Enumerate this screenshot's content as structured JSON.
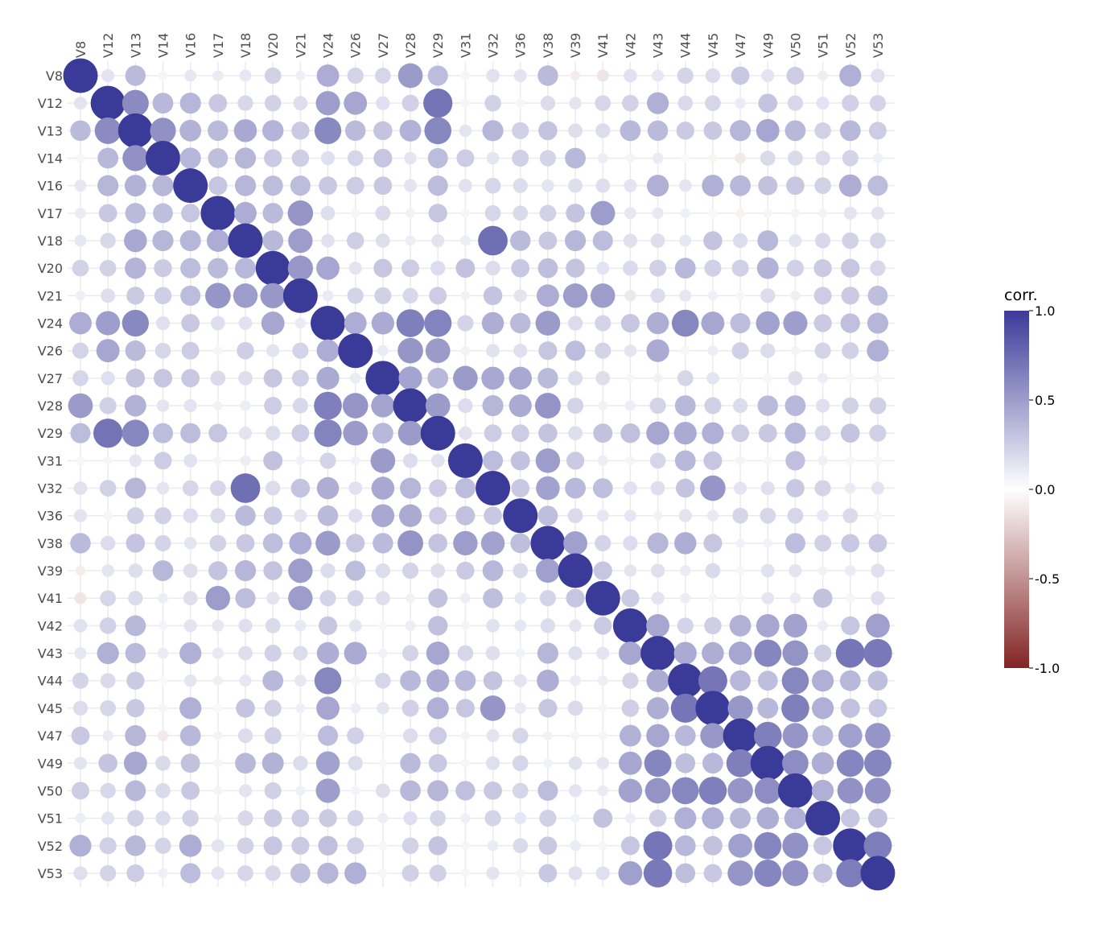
{
  "chart_data": {
    "type": "correlation-dot-matrix",
    "variables": [
      "V8",
      "V12",
      "V13",
      "V14",
      "V16",
      "V17",
      "V18",
      "V20",
      "V21",
      "V24",
      "V26",
      "V27",
      "V28",
      "V29",
      "V31",
      "V32",
      "V36",
      "V38",
      "V39",
      "V41",
      "V42",
      "V43",
      "V44",
      "V45",
      "V47",
      "V49",
      "V50",
      "V51",
      "V52",
      "V53"
    ],
    "x_axis_position": "top",
    "x_tick_rotation": -90,
    "grid": true,
    "legend": {
      "title": "corr.",
      "position": "right",
      "ticks": [
        "1.0",
        "0.5",
        "0.0",
        "-0.5",
        "-1.0"
      ],
      "range": [
        -1,
        1
      ],
      "colors": {
        "low": "#832424",
        "mid": "#ffffff",
        "high": "#3a3a98"
      }
    },
    "matrix": [
      [
        1.0,
        0.14,
        0.35,
        0.05,
        0.12,
        0.1,
        0.12,
        0.23,
        0.08,
        0.42,
        0.22,
        0.21,
        0.51,
        0.34,
        0.05,
        0.15,
        0.14,
        0.35,
        -0.08,
        -0.12,
        0.15,
        0.12,
        0.22,
        0.18,
        0.28,
        0.14,
        0.26,
        0.09,
        0.4,
        0.16
      ],
      [
        0.14,
        1.0,
        0.59,
        0.36,
        0.37,
        0.28,
        0.2,
        0.23,
        0.17,
        0.49,
        0.45,
        0.16,
        0.24,
        0.71,
        0.05,
        0.23,
        0.05,
        0.18,
        0.13,
        0.21,
        0.23,
        0.4,
        0.19,
        0.21,
        0.1,
        0.3,
        0.2,
        0.14,
        0.24,
        0.22
      ],
      [
        0.35,
        0.59,
        1.0,
        0.56,
        0.39,
        0.35,
        0.44,
        0.38,
        0.27,
        0.6,
        0.35,
        0.3,
        0.39,
        0.61,
        0.13,
        0.37,
        0.24,
        0.3,
        0.17,
        0.18,
        0.36,
        0.35,
        0.27,
        0.28,
        0.37,
        0.45,
        0.36,
        0.23,
        0.36,
        0.26
      ],
      [
        0.05,
        0.36,
        0.56,
        1.0,
        0.37,
        0.33,
        0.37,
        0.27,
        0.25,
        0.16,
        0.21,
        0.29,
        0.13,
        0.34,
        0.26,
        0.13,
        0.24,
        0.22,
        0.36,
        0.09,
        0.06,
        0.1,
        0.03,
        -0.05,
        -0.1,
        0.19,
        0.19,
        0.18,
        0.22,
        0.08
      ],
      [
        0.12,
        0.37,
        0.39,
        0.37,
        1.0,
        0.29,
        0.37,
        0.34,
        0.34,
        0.28,
        0.26,
        0.28,
        0.14,
        0.34,
        0.15,
        0.21,
        0.18,
        0.13,
        0.17,
        0.17,
        0.14,
        0.4,
        0.13,
        0.4,
        0.36,
        0.31,
        0.28,
        0.23,
        0.42,
        0.34
      ],
      [
        0.1,
        0.28,
        0.35,
        0.33,
        0.29,
        1.0,
        0.42,
        0.35,
        0.54,
        0.17,
        0.05,
        0.19,
        0.07,
        0.29,
        0.05,
        0.21,
        0.19,
        0.23,
        0.3,
        0.5,
        0.12,
        0.11,
        0.08,
        0.03,
        -0.06,
        0.05,
        0.06,
        0.06,
        0.14,
        0.14
      ],
      [
        0.12,
        0.2,
        0.44,
        0.37,
        0.37,
        0.42,
        1.0,
        0.36,
        0.5,
        0.15,
        0.25,
        0.17,
        0.09,
        0.14,
        0.09,
        0.73,
        0.35,
        0.28,
        0.37,
        0.34,
        0.16,
        0.17,
        0.12,
        0.3,
        0.18,
        0.36,
        0.14,
        0.2,
        0.23,
        0.21
      ],
      [
        0.23,
        0.23,
        0.38,
        0.27,
        0.34,
        0.35,
        0.36,
        1.0,
        0.53,
        0.45,
        0.14,
        0.29,
        0.26,
        0.18,
        0.31,
        0.18,
        0.28,
        0.33,
        0.3,
        0.14,
        0.19,
        0.24,
        0.36,
        0.24,
        0.24,
        0.39,
        0.24,
        0.27,
        0.29,
        0.2
      ],
      [
        0.08,
        0.17,
        0.27,
        0.25,
        0.34,
        0.54,
        0.5,
        0.53,
        1.0,
        0.1,
        0.22,
        0.24,
        0.2,
        0.26,
        0.07,
        0.3,
        0.14,
        0.42,
        0.5,
        0.5,
        0.11,
        0.18,
        0.12,
        0.08,
        0.04,
        0.18,
        0.08,
        0.26,
        0.27,
        0.33
      ],
      [
        0.42,
        0.49,
        0.6,
        0.16,
        0.28,
        0.17,
        0.15,
        0.45,
        0.1,
        1.0,
        0.42,
        0.43,
        0.65,
        0.63,
        0.22,
        0.41,
        0.35,
        0.51,
        0.18,
        0.22,
        0.29,
        0.41,
        0.61,
        0.45,
        0.34,
        0.47,
        0.49,
        0.27,
        0.32,
        0.37
      ],
      [
        0.22,
        0.45,
        0.35,
        0.21,
        0.26,
        0.05,
        0.25,
        0.14,
        0.22,
        0.42,
        1.0,
        0.1,
        0.54,
        0.51,
        0.07,
        0.15,
        0.16,
        0.29,
        0.34,
        0.22,
        0.13,
        0.43,
        0.05,
        0.09,
        0.24,
        0.18,
        0.06,
        0.22,
        0.24,
        0.4
      ],
      [
        0.21,
        0.16,
        0.3,
        0.29,
        0.28,
        0.19,
        0.17,
        0.29,
        0.24,
        0.43,
        0.1,
        1.0,
        0.46,
        0.36,
        0.51,
        0.44,
        0.44,
        0.35,
        0.18,
        0.17,
        0.04,
        0.07,
        0.21,
        0.13,
        0.04,
        0.04,
        0.17,
        0.09,
        0.04,
        0.05
      ],
      [
        0.51,
        0.24,
        0.39,
        0.13,
        0.14,
        0.07,
        0.09,
        0.26,
        0.2,
        0.65,
        0.54,
        0.46,
        1.0,
        0.51,
        0.18,
        0.37,
        0.43,
        0.55,
        0.22,
        0.07,
        0.09,
        0.22,
        0.36,
        0.24,
        0.18,
        0.35,
        0.36,
        0.16,
        0.23,
        0.24
      ],
      [
        0.34,
        0.71,
        0.61,
        0.34,
        0.34,
        0.29,
        0.14,
        0.18,
        0.26,
        0.63,
        0.51,
        0.36,
        0.51,
        1.0,
        0.15,
        0.26,
        0.26,
        0.3,
        0.17,
        0.31,
        0.32,
        0.45,
        0.43,
        0.4,
        0.26,
        0.28,
        0.37,
        0.21,
        0.3,
        0.24
      ],
      [
        0.05,
        0.05,
        0.13,
        0.26,
        0.15,
        0.05,
        0.09,
        0.31,
        0.07,
        0.22,
        0.07,
        0.51,
        0.18,
        0.15,
        1.0,
        0.34,
        0.31,
        0.5,
        0.27,
        0.09,
        0.06,
        0.21,
        0.36,
        0.29,
        -0.06,
        0.05,
        0.32,
        0.08,
        0.05,
        0.05
      ],
      [
        0.15,
        0.23,
        0.37,
        0.13,
        0.21,
        0.21,
        0.73,
        0.18,
        0.3,
        0.41,
        0.15,
        0.44,
        0.37,
        0.26,
        0.34,
        1.0,
        0.28,
        0.47,
        0.36,
        0.33,
        0.15,
        0.17,
        0.3,
        0.54,
        0.14,
        0.16,
        0.28,
        0.22,
        0.1,
        0.14
      ],
      [
        0.14,
        0.05,
        0.24,
        0.24,
        0.18,
        0.19,
        0.35,
        0.28,
        0.14,
        0.35,
        0.16,
        0.44,
        0.43,
        0.26,
        0.31,
        0.28,
        1.0,
        0.33,
        0.19,
        0.12,
        0.12,
        0.07,
        0.14,
        0.11,
        0.21,
        0.21,
        0.21,
        0.12,
        0.19,
        0.05
      ],
      [
        0.35,
        0.18,
        0.3,
        0.22,
        0.13,
        0.23,
        0.28,
        0.33,
        0.42,
        0.51,
        0.29,
        0.35,
        0.55,
        0.3,
        0.5,
        0.47,
        0.33,
        1.0,
        0.48,
        0.22,
        0.18,
        0.37,
        0.41,
        0.29,
        0.07,
        0.07,
        0.34,
        0.24,
        0.28,
        0.28
      ],
      [
        -0.08,
        0.13,
        0.17,
        0.36,
        0.17,
        0.3,
        0.37,
        0.3,
        0.5,
        0.18,
        0.34,
        0.18,
        0.22,
        0.17,
        0.27,
        0.36,
        0.19,
        0.48,
        1.0,
        0.29,
        0.13,
        0.16,
        0.1,
        0.19,
        0.05,
        0.15,
        0.14,
        0.07,
        0.1,
        0.16
      ],
      [
        -0.12,
        0.21,
        0.18,
        0.09,
        0.17,
        0.5,
        0.34,
        0.14,
        0.5,
        0.22,
        0.22,
        0.17,
        0.07,
        0.31,
        0.09,
        0.33,
        0.12,
        0.22,
        0.29,
        1.0,
        0.27,
        0.14,
        0.09,
        0.05,
        0.05,
        0.13,
        0.1,
        0.31,
        0.05,
        0.16
      ],
      [
        0.15,
        0.23,
        0.36,
        0.06,
        0.14,
        0.12,
        0.16,
        0.19,
        0.11,
        0.29,
        0.13,
        0.04,
        0.09,
        0.32,
        0.06,
        0.15,
        0.12,
        0.18,
        0.13,
        0.27,
        1.0,
        0.45,
        0.22,
        0.25,
        0.39,
        0.45,
        0.47,
        0.09,
        0.29,
        0.48
      ],
      [
        0.12,
        0.4,
        0.35,
        0.1,
        0.4,
        0.11,
        0.17,
        0.24,
        0.18,
        0.41,
        0.43,
        0.07,
        0.22,
        0.45,
        0.21,
        0.17,
        0.07,
        0.37,
        0.16,
        0.14,
        0.45,
        1.0,
        0.43,
        0.41,
        0.45,
        0.62,
        0.55,
        0.25,
        0.7,
        0.68
      ],
      [
        0.22,
        0.19,
        0.27,
        0.03,
        0.13,
        0.08,
        0.12,
        0.36,
        0.12,
        0.61,
        0.05,
        0.21,
        0.36,
        0.43,
        0.36,
        0.3,
        0.14,
        0.41,
        0.1,
        0.09,
        0.22,
        0.43,
        1.0,
        0.7,
        0.36,
        0.33,
        0.61,
        0.4,
        0.36,
        0.33
      ],
      [
        0.18,
        0.21,
        0.28,
        -0.05,
        0.4,
        0.03,
        0.3,
        0.24,
        0.08,
        0.45,
        0.09,
        0.13,
        0.24,
        0.4,
        0.29,
        0.54,
        0.11,
        0.29,
        0.19,
        0.05,
        0.25,
        0.41,
        0.7,
        1.0,
        0.53,
        0.36,
        0.65,
        0.4,
        0.31,
        0.28
      ],
      [
        0.28,
        0.1,
        0.37,
        -0.1,
        0.36,
        -0.06,
        0.18,
        0.24,
        0.04,
        0.34,
        0.24,
        0.04,
        0.18,
        0.26,
        -0.06,
        0.14,
        0.21,
        0.07,
        0.05,
        0.05,
        0.39,
        0.45,
        0.36,
        0.53,
        1.0,
        0.65,
        0.54,
        0.36,
        0.48,
        0.54
      ],
      [
        0.14,
        0.3,
        0.45,
        0.19,
        0.31,
        0.05,
        0.36,
        0.39,
        0.18,
        0.47,
        0.18,
        0.04,
        0.35,
        0.28,
        0.05,
        0.16,
        0.21,
        0.07,
        0.15,
        0.13,
        0.45,
        0.62,
        0.33,
        0.36,
        0.65,
        1.0,
        0.58,
        0.41,
        0.62,
        0.62
      ],
      [
        0.26,
        0.2,
        0.36,
        0.19,
        0.28,
        0.06,
        0.14,
        0.24,
        0.08,
        0.49,
        0.06,
        0.17,
        0.36,
        0.37,
        0.32,
        0.28,
        0.21,
        0.34,
        0.14,
        0.1,
        0.47,
        0.55,
        0.61,
        0.65,
        0.54,
        0.58,
        1.0,
        0.4,
        0.56,
        0.56
      ],
      [
        0.09,
        0.14,
        0.23,
        0.18,
        0.23,
        0.06,
        0.2,
        0.27,
        0.26,
        0.27,
        0.22,
        0.09,
        0.16,
        0.21,
        0.08,
        0.22,
        0.12,
        0.24,
        0.07,
        0.31,
        0.09,
        0.25,
        0.4,
        0.4,
        0.36,
        0.41,
        0.4,
        1.0,
        0.29,
        0.31
      ],
      [
        0.4,
        0.24,
        0.36,
        0.22,
        0.42,
        0.14,
        0.23,
        0.29,
        0.27,
        0.32,
        0.24,
        0.04,
        0.23,
        0.3,
        0.05,
        0.1,
        0.19,
        0.28,
        0.1,
        0.05,
        0.29,
        0.7,
        0.36,
        0.31,
        0.48,
        0.62,
        0.56,
        0.29,
        1.0,
        0.66
      ],
      [
        0.16,
        0.22,
        0.26,
        0.08,
        0.34,
        0.14,
        0.21,
        0.2,
        0.33,
        0.37,
        0.4,
        0.05,
        0.24,
        0.24,
        0.05,
        0.14,
        0.05,
        0.28,
        0.16,
        0.16,
        0.48,
        0.68,
        0.33,
        0.28,
        0.54,
        0.62,
        0.56,
        0.31,
        0.66,
        1.0
      ]
    ]
  }
}
